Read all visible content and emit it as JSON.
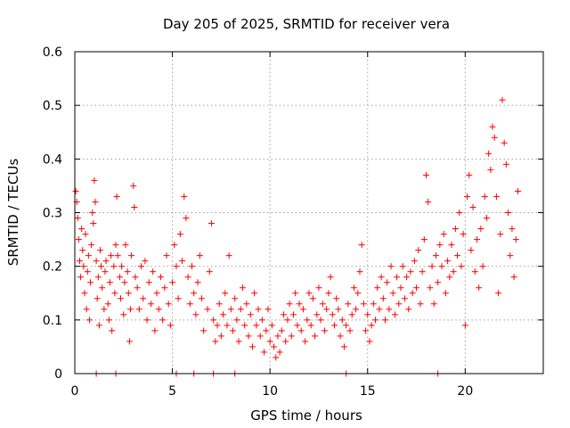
{
  "chart_data": {
    "type": "scatter",
    "title": "Day 205 of 2025, SRMTID for receiver vera",
    "xlabel": "GPS time / hours",
    "ylabel": "SRMTID / TECUs",
    "xlim": [
      0,
      24
    ],
    "ylim": [
      0,
      0.6
    ],
    "xticks": [
      0,
      5,
      10,
      15,
      20
    ],
    "xtick_labels": [
      "0",
      "5",
      "10",
      "15",
      "20"
    ],
    "yticks": [
      0,
      0.1,
      0.2,
      0.3,
      0.4,
      0.5,
      0.6
    ],
    "ytick_labels": [
      "0",
      "0.1",
      "0.2",
      "0.3",
      "0.4",
      "0.5",
      "0.6"
    ],
    "grid": true,
    "marker": "+",
    "color": "#ff0000",
    "series": [
      {
        "name": "SRMTID",
        "points": [
          [
            0.05,
            0.34
          ],
          [
            0.1,
            0.32
          ],
          [
            0.15,
            0.29
          ],
          [
            0.2,
            0.25
          ],
          [
            0.25,
            0.21
          ],
          [
            0.3,
            0.18
          ],
          [
            0.35,
            0.27
          ],
          [
            0.4,
            0.23
          ],
          [
            0.45,
            0.2
          ],
          [
            0.5,
            0.15
          ],
          [
            0.55,
            0.26
          ],
          [
            0.6,
            0.12
          ],
          [
            0.65,
            0.19
          ],
          [
            0.7,
            0.22
          ],
          [
            0.75,
            0.1
          ],
          [
            0.8,
            0.17
          ],
          [
            0.85,
            0.24
          ],
          [
            0.9,
            0.3
          ],
          [
            0.95,
            0.28
          ],
          [
            1.0,
            0.36
          ],
          [
            1.05,
            0.32
          ],
          [
            1.1,
            0.21
          ],
          [
            1.15,
            0.14
          ],
          [
            1.2,
            0.18
          ],
          [
            1.25,
            0.09
          ],
          [
            1.3,
            0.23
          ],
          [
            1.35,
            0.2
          ],
          [
            1.4,
            0.16
          ],
          [
            1.5,
            0.12
          ],
          [
            1.55,
            0.19
          ],
          [
            1.6,
            0.21
          ],
          [
            1.7,
            0.13
          ],
          [
            1.75,
            0.1
          ],
          [
            1.8,
            0.17
          ],
          [
            1.85,
            0.22
          ],
          [
            1.9,
            0.08
          ],
          [
            2.0,
            0.2
          ],
          [
            2.05,
            0.15
          ],
          [
            2.1,
            0.24
          ],
          [
            2.15,
            0.33
          ],
          [
            2.2,
            0.22
          ],
          [
            2.3,
            0.18
          ],
          [
            2.35,
            0.14
          ],
          [
            2.4,
            0.2
          ],
          [
            2.5,
            0.11
          ],
          [
            2.55,
            0.17
          ],
          [
            2.6,
            0.24
          ],
          [
            2.7,
            0.19
          ],
          [
            2.75,
            0.15
          ],
          [
            2.8,
            0.06
          ],
          [
            2.85,
            0.12
          ],
          [
            2.9,
            0.22
          ],
          [
            3.0,
            0.35
          ],
          [
            3.05,
            0.31
          ],
          [
            3.1,
            0.18
          ],
          [
            3.2,
            0.16
          ],
          [
            3.3,
            0.12
          ],
          [
            3.4,
            0.2
          ],
          [
            3.5,
            0.14
          ],
          [
            3.6,
            0.21
          ],
          [
            3.7,
            0.1
          ],
          [
            3.8,
            0.17
          ],
          [
            3.9,
            0.13
          ],
          [
            4.0,
            0.19
          ],
          [
            4.1,
            0.08
          ],
          [
            4.2,
            0.15
          ],
          [
            4.3,
            0.12
          ],
          [
            4.4,
            0.18
          ],
          [
            4.5,
            0.1
          ],
          [
            4.6,
            0.16
          ],
          [
            4.7,
            0.22
          ],
          [
            4.8,
            0.13
          ],
          [
            4.9,
            0.09
          ],
          [
            5.0,
            0.17
          ],
          [
            5.1,
            0.24
          ],
          [
            5.2,
            0.2
          ],
          [
            5.3,
            0.14
          ],
          [
            5.4,
            0.26
          ],
          [
            5.5,
            0.21
          ],
          [
            5.6,
            0.33
          ],
          [
            5.7,
            0.29
          ],
          [
            5.8,
            0.18
          ],
          [
            5.9,
            0.13
          ],
          [
            6.0,
            0.2
          ],
          [
            6.1,
            0.15
          ],
          [
            6.2,
            0.11
          ],
          [
            6.3,
            0.17
          ],
          [
            6.4,
            0.22
          ],
          [
            6.5,
            0.14
          ],
          [
            6.6,
            0.08
          ],
          [
            6.8,
            0.12
          ],
          [
            6.9,
            0.19
          ],
          [
            7.0,
            0.28
          ],
          [
            7.1,
            0.1
          ],
          [
            7.2,
            0.06
          ],
          [
            7.3,
            0.09
          ],
          [
            7.4,
            0.13
          ],
          [
            7.5,
            0.07
          ],
          [
            7.6,
            0.11
          ],
          [
            7.7,
            0.15
          ],
          [
            7.8,
            0.09
          ],
          [
            7.9,
            0.22
          ],
          [
            8.0,
            0.12
          ],
          [
            8.1,
            0.08
          ],
          [
            8.2,
            0.14
          ],
          [
            8.3,
            0.1
          ],
          [
            8.4,
            0.06
          ],
          [
            8.5,
            0.12
          ],
          [
            8.6,
            0.16
          ],
          [
            8.7,
            0.09
          ],
          [
            8.8,
            0.13
          ],
          [
            8.9,
            0.07
          ],
          [
            9.0,
            0.11
          ],
          [
            9.1,
            0.05
          ],
          [
            9.2,
            0.15
          ],
          [
            9.3,
            0.09
          ],
          [
            9.4,
            0.12
          ],
          [
            9.5,
            0.07
          ],
          [
            9.6,
            0.1
          ],
          [
            9.7,
            0.04
          ],
          [
            9.8,
            0.08
          ],
          [
            9.9,
            0.12
          ],
          [
            10.0,
            0.06
          ],
          [
            10.1,
            0.09
          ],
          [
            10.2,
            0.05
          ],
          [
            10.3,
            0.03
          ],
          [
            10.4,
            0.07
          ],
          [
            10.5,
            0.04
          ],
          [
            10.6,
            0.08
          ],
          [
            10.7,
            0.11
          ],
          [
            10.8,
            0.06
          ],
          [
            10.9,
            0.1
          ],
          [
            11.0,
            0.13
          ],
          [
            11.1,
            0.07
          ],
          [
            11.2,
            0.11
          ],
          [
            11.3,
            0.15
          ],
          [
            11.4,
            0.09
          ],
          [
            11.5,
            0.13
          ],
          [
            11.6,
            0.08
          ],
          [
            11.7,
            0.12
          ],
          [
            11.8,
            0.06
          ],
          [
            11.9,
            0.1
          ],
          [
            12.0,
            0.15
          ],
          [
            12.1,
            0.09
          ],
          [
            12.2,
            0.14
          ],
          [
            12.3,
            0.07
          ],
          [
            12.4,
            0.11
          ],
          [
            12.5,
            0.16
          ],
          [
            12.6,
            0.1
          ],
          [
            12.7,
            0.13
          ],
          [
            12.8,
            0.08
          ],
          [
            12.9,
            0.12
          ],
          [
            13.0,
            0.15
          ],
          [
            13.1,
            0.18
          ],
          [
            13.2,
            0.11
          ],
          [
            13.3,
            0.09
          ],
          [
            13.4,
            0.14
          ],
          [
            13.5,
            0.12
          ],
          [
            13.6,
            0.07
          ],
          [
            13.7,
            0.1
          ],
          [
            13.8,
            0.05
          ],
          [
            13.9,
            0.09
          ],
          [
            14.0,
            0.13
          ],
          [
            14.1,
            0.08
          ],
          [
            14.2,
            0.11
          ],
          [
            14.3,
            0.16
          ],
          [
            14.4,
            0.12
          ],
          [
            14.5,
            0.15
          ],
          [
            14.6,
            0.19
          ],
          [
            14.7,
            0.24
          ],
          [
            14.8,
            0.13
          ],
          [
            14.9,
            0.08
          ],
          [
            15.0,
            0.11
          ],
          [
            15.1,
            0.06
          ],
          [
            15.2,
            0.09
          ],
          [
            15.3,
            0.13
          ],
          [
            15.4,
            0.1
          ],
          [
            15.5,
            0.16
          ],
          [
            15.6,
            0.12
          ],
          [
            15.7,
            0.18
          ],
          [
            15.8,
            0.14
          ],
          [
            15.9,
            0.1
          ],
          [
            16.0,
            0.17
          ],
          [
            16.1,
            0.12
          ],
          [
            16.2,
            0.2
          ],
          [
            16.3,
            0.15
          ],
          [
            16.4,
            0.11
          ],
          [
            16.5,
            0.18
          ],
          [
            16.6,
            0.13
          ],
          [
            16.7,
            0.16
          ],
          [
            16.8,
            0.2
          ],
          [
            16.9,
            0.14
          ],
          [
            17.0,
            0.18
          ],
          [
            17.1,
            0.12
          ],
          [
            17.2,
            0.19
          ],
          [
            17.3,
            0.15
          ],
          [
            17.4,
            0.21
          ],
          [
            17.5,
            0.16
          ],
          [
            17.6,
            0.23
          ],
          [
            17.7,
            0.13
          ],
          [
            17.8,
            0.19
          ],
          [
            17.9,
            0.25
          ],
          [
            18.0,
            0.37
          ],
          [
            18.1,
            0.32
          ],
          [
            18.2,
            0.16
          ],
          [
            18.3,
            0.2
          ],
          [
            18.4,
            0.13
          ],
          [
            18.5,
            0.22
          ],
          [
            18.6,
            0.17
          ],
          [
            18.7,
            0.24
          ],
          [
            18.8,
            0.2
          ],
          [
            18.9,
            0.26
          ],
          [
            19.0,
            0.15
          ],
          [
            19.1,
            0.21
          ],
          [
            19.2,
            0.18
          ],
          [
            19.3,
            0.24
          ],
          [
            19.4,
            0.19
          ],
          [
            19.5,
            0.27
          ],
          [
            19.6,
            0.22
          ],
          [
            19.7,
            0.3
          ],
          [
            19.8,
            0.2
          ],
          [
            19.9,
            0.26
          ],
          [
            20.0,
            0.09
          ],
          [
            20.1,
            0.33
          ],
          [
            20.2,
            0.37
          ],
          [
            20.3,
            0.23
          ],
          [
            20.4,
            0.31
          ],
          [
            20.5,
            0.19
          ],
          [
            20.6,
            0.25
          ],
          [
            20.7,
            0.16
          ],
          [
            20.8,
            0.27
          ],
          [
            20.9,
            0.2
          ],
          [
            21.0,
            0.33
          ],
          [
            21.1,
            0.29
          ],
          [
            21.2,
            0.41
          ],
          [
            21.3,
            0.38
          ],
          [
            21.4,
            0.46
          ],
          [
            21.5,
            0.44
          ],
          [
            21.6,
            0.33
          ],
          [
            21.7,
            0.15
          ],
          [
            21.8,
            0.26
          ],
          [
            21.9,
            0.51
          ],
          [
            22.0,
            0.43
          ],
          [
            22.1,
            0.39
          ],
          [
            22.2,
            0.3
          ],
          [
            22.3,
            0.22
          ],
          [
            22.4,
            0.27
          ],
          [
            22.5,
            0.18
          ],
          [
            22.6,
            0.25
          ],
          [
            22.7,
            0.34
          ],
          [
            1.1,
            0.0
          ],
          [
            2.1,
            0.0
          ],
          [
            5.2,
            0.0
          ],
          [
            6.1,
            0.0
          ],
          [
            7.1,
            0.0
          ],
          [
            8.2,
            0.0
          ],
          [
            13.9,
            0.0
          ],
          [
            18.6,
            0.0
          ]
        ]
      }
    ]
  }
}
